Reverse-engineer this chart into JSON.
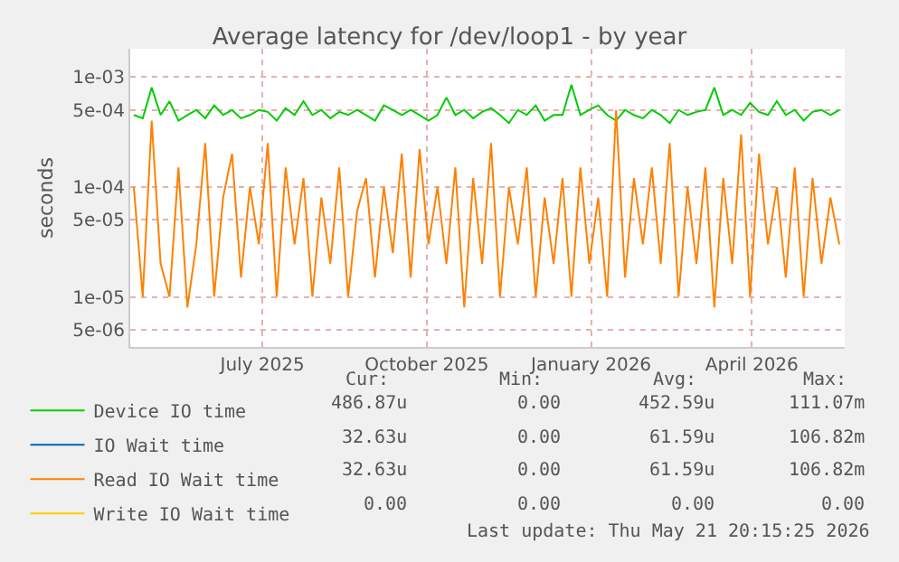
{
  "chart_data": {
    "type": "line",
    "title": "Average latency for /dev/loop1 - by year",
    "ylabel": "seconds",
    "x": [
      "2025-04-20",
      "2025-04-25",
      "2025-04-30",
      "2025-05-05",
      "2025-05-10",
      "2025-05-15",
      "2025-05-20",
      "2025-05-25",
      "2025-05-30",
      "2025-06-04",
      "2025-06-09",
      "2025-06-14",
      "2025-06-19",
      "2025-06-24",
      "2025-06-29",
      "2025-07-04",
      "2025-07-09",
      "2025-07-14",
      "2025-07-19",
      "2025-07-24",
      "2025-07-29",
      "2025-08-03",
      "2025-08-08",
      "2025-08-13",
      "2025-08-18",
      "2025-08-23",
      "2025-08-28",
      "2025-09-02",
      "2025-09-07",
      "2025-09-12",
      "2025-09-17",
      "2025-09-22",
      "2025-09-27",
      "2025-10-02",
      "2025-10-07",
      "2025-10-12",
      "2025-10-17",
      "2025-10-22",
      "2025-10-27",
      "2025-11-01",
      "2025-11-06",
      "2025-11-11",
      "2025-11-16",
      "2025-11-21",
      "2025-11-26",
      "2025-12-01",
      "2025-12-06",
      "2025-12-11",
      "2025-12-16",
      "2025-12-21",
      "2025-12-26",
      "2025-12-31",
      "2026-01-05",
      "2026-01-10",
      "2026-01-15",
      "2026-01-20",
      "2026-01-25",
      "2026-01-30",
      "2026-02-04",
      "2026-02-09",
      "2026-02-14",
      "2026-02-19",
      "2026-02-24",
      "2026-03-01",
      "2026-03-06",
      "2026-03-11",
      "2026-03-16",
      "2026-03-21",
      "2026-03-26",
      "2026-03-31",
      "2026-04-05",
      "2026-04-10",
      "2026-04-15",
      "2026-04-20",
      "2026-04-25",
      "2026-04-30",
      "2026-05-05",
      "2026-05-10",
      "2026-05-15",
      "2026-05-20"
    ],
    "series": [
      {
        "name": "Device IO time",
        "color": "#00cc00",
        "values": [
          0.00045,
          0.00042,
          0.0008,
          0.00045,
          0.0006,
          0.0004,
          0.00045,
          0.0005,
          0.00042,
          0.00055,
          0.00045,
          0.0005,
          0.00042,
          0.00045,
          0.0005,
          0.00048,
          0.0004,
          0.00052,
          0.00045,
          0.0006,
          0.00045,
          0.0005,
          0.00042,
          0.00048,
          0.00045,
          0.0005,
          0.00045,
          0.0004,
          0.00055,
          0.0005,
          0.00045,
          0.0005,
          0.00045,
          0.0004,
          0.00045,
          0.00065,
          0.00045,
          0.0005,
          0.00042,
          0.00048,
          0.00052,
          0.00045,
          0.00038,
          0.0005,
          0.00045,
          0.00055,
          0.0004,
          0.00045,
          0.00045,
          0.00085,
          0.00045,
          0.0005,
          0.00055,
          0.00045,
          0.0004,
          0.0005,
          0.00045,
          0.00042,
          0.0005,
          0.00045,
          0.00038,
          0.0005,
          0.00045,
          0.00048,
          0.0005,
          0.0008,
          0.00045,
          0.0005,
          0.00045,
          0.00058,
          0.00048,
          0.00045,
          0.0006,
          0.00045,
          0.0005,
          0.0004,
          0.00048,
          0.0005,
          0.00045,
          0.0005
        ]
      },
      {
        "name": "IO Wait time",
        "color": "#0066b3",
        "values": [
          null,
          null,
          null,
          null,
          null,
          null,
          null,
          null,
          null,
          null,
          null,
          null,
          null,
          null,
          null,
          null,
          null,
          null,
          null,
          null,
          null,
          null,
          null,
          null,
          null,
          null,
          null,
          null,
          null,
          null,
          null,
          null,
          null,
          null,
          null,
          null,
          null,
          null,
          null,
          null,
          null,
          null,
          null,
          null,
          null,
          null,
          null,
          null,
          null,
          null,
          null,
          null,
          null,
          null,
          null,
          null,
          null,
          null,
          null,
          null,
          null,
          null,
          null,
          null,
          null,
          null,
          null,
          null,
          null,
          null,
          null,
          null,
          null,
          null,
          null,
          null,
          null,
          null,
          null,
          null
        ]
      },
      {
        "name": "Read IO Wait time",
        "color": "#ff8000",
        "values": [
          0.0001,
          1e-05,
          0.0004,
          2e-05,
          1e-05,
          0.00015,
          8e-06,
          3e-05,
          0.00025,
          1e-05,
          8e-05,
          0.0002,
          1.5e-05,
          0.0001,
          3e-05,
          0.00025,
          1e-05,
          0.00015,
          3e-05,
          0.00012,
          1e-05,
          8e-05,
          2e-05,
          0.00015,
          1e-05,
          6e-05,
          0.00012,
          1.5e-05,
          0.0001,
          2.5e-05,
          0.0002,
          1.5e-05,
          0.00022,
          3e-05,
          0.0001,
          2e-05,
          0.00015,
          8e-06,
          0.00012,
          2e-05,
          0.00025,
          1e-05,
          0.0001,
          3e-05,
          0.00015,
          1e-05,
          8e-05,
          2e-05,
          0.00012,
          1e-05,
          0.00015,
          2e-05,
          8e-05,
          1e-05,
          0.0005,
          1.5e-05,
          0.00012,
          3e-05,
          0.00015,
          2e-05,
          0.00025,
          1e-05,
          0.0001,
          2e-05,
          0.00015,
          8e-06,
          0.00012,
          2e-05,
          0.0003,
          1e-05,
          0.0002,
          3e-05,
          0.0001,
          1.5e-05,
          0.00015,
          1e-05,
          0.00012,
          2e-05,
          8e-05,
          3e-05
        ]
      },
      {
        "name": "Write IO Wait time",
        "color": "#ffcc00",
        "values": [
          null,
          null,
          null,
          null,
          null,
          null,
          null,
          null,
          null,
          null,
          null,
          null,
          null,
          null,
          null,
          null,
          null,
          null,
          null,
          null,
          null,
          null,
          null,
          null,
          null,
          null,
          null,
          null,
          null,
          null,
          null,
          null,
          null,
          null,
          null,
          null,
          null,
          null,
          null,
          null,
          null,
          null,
          null,
          null,
          null,
          null,
          null,
          null,
          null,
          null,
          null,
          null,
          null,
          null,
          null,
          null,
          null,
          null,
          null,
          null,
          null,
          null,
          null,
          null,
          null,
          null,
          null,
          null,
          null,
          null,
          null,
          null,
          null,
          null,
          null,
          null,
          null,
          null,
          null,
          null
        ]
      }
    ],
    "log": true,
    "ylim": [
      3.5e-06,
      0.0018
    ],
    "yticks": [
      {
        "value": 5e-06,
        "label": "5e-06"
      },
      {
        "value": 1e-05,
        "label": "1e-05"
      },
      {
        "value": 5e-05,
        "label": "5e-05"
      },
      {
        "value": 0.0001,
        "label": "1e-04"
      },
      {
        "value": 0.0005,
        "label": "5e-04"
      },
      {
        "value": 0.001,
        "label": "1e-03"
      }
    ],
    "xlim": [
      "2025-04-18",
      "2026-05-23"
    ],
    "xticks": [
      {
        "value": "2025-07-01",
        "label": "July 2025"
      },
      {
        "value": "2025-10-01",
        "label": "October 2025"
      },
      {
        "value": "2026-01-01",
        "label": "January 2026"
      },
      {
        "value": "2026-04-01",
        "label": "April 2026"
      }
    ],
    "grid": true,
    "legend": "bottom",
    "marker": "none",
    "line_style": "solid",
    "annotations": [
      "Cur:",
      "Min:",
      "Avg:",
      "Max:",
      "486.87u",
      "0.00",
      "452.59u",
      "111.07m",
      "32.63u",
      "0.00",
      "61.59u",
      "106.82m",
      "32.63u",
      "0.00",
      "61.59u",
      "106.82m",
      "0.00",
      "0.00",
      "0.00",
      "0.00",
      "Last update: Thu May 21 20:15:25 2026"
    ]
  }
}
